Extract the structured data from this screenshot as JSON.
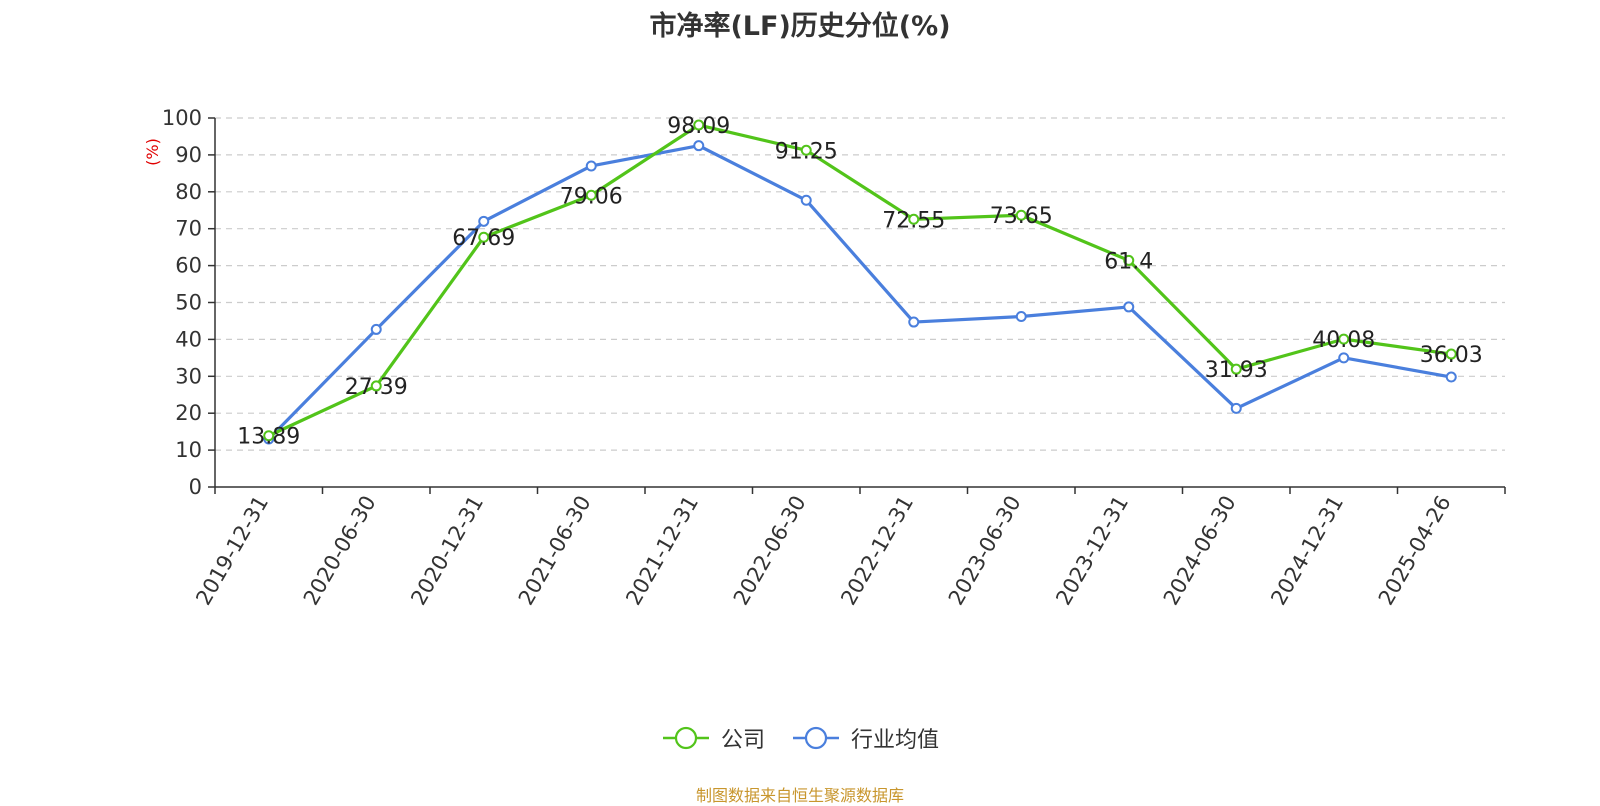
{
  "chart_data": {
    "type": "line",
    "title": "市净率(LF)历史分位(%)",
    "ylabel": "(%)",
    "ylim": [
      0,
      100
    ],
    "yticks": [
      0,
      10,
      20,
      30,
      40,
      50,
      60,
      70,
      80,
      90,
      100
    ],
    "grid": true,
    "legend_position": "bottom",
    "categories": [
      "2019-12-31",
      "2020-06-30",
      "2020-12-31",
      "2021-06-30",
      "2021-12-31",
      "2022-06-30",
      "2022-12-31",
      "2023-06-30",
      "2023-12-31",
      "2024-06-30",
      "2024-12-31",
      "2025-04-26"
    ],
    "series": [
      {
        "name": "公司",
        "color": "#52c41a",
        "show_labels": true,
        "values": [
          13.89,
          27.39,
          67.69,
          79.06,
          98.09,
          91.25,
          72.55,
          73.65,
          61.4,
          31.93,
          40.08,
          36.03
        ]
      },
      {
        "name": "行业均值",
        "color": "#4a7fdd",
        "show_labels": false,
        "values": [
          13.0,
          42.7,
          72.0,
          87.0,
          92.5,
          77.7,
          44.7,
          46.2,
          48.8,
          21.3,
          35.0,
          29.8
        ]
      }
    ],
    "source_note": "制图数据来自恒生聚源数据库",
    "ylabel_color": "#e00000",
    "note_color": "#c8962d"
  }
}
